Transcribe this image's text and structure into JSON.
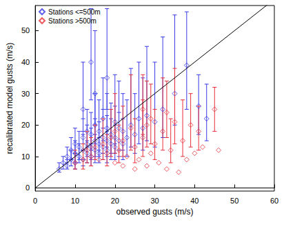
{
  "chart_data": {
    "type": "scatter",
    "x_label": "observed gusts (m/s)",
    "y_label": "recalibrated model gusts (m/s)",
    "xlim": [
      0,
      60
    ],
    "xticks": [
      0,
      10,
      20,
      30,
      40,
      50,
      60
    ],
    "ylim": [
      -1,
      58
    ],
    "yticks": [
      0,
      10,
      20,
      30,
      40,
      50
    ],
    "legend": "top-left",
    "series": [
      {
        "name": "Stations <=500m",
        "color": "#3a3ae8",
        "marker": "diamond",
        "x": [
          6,
          7,
          8,
          8,
          9,
          9,
          10,
          10,
          10,
          11,
          11,
          12,
          12,
          12,
          13,
          13,
          13,
          14,
          14,
          14,
          15,
          15,
          15,
          16,
          16,
          16,
          17,
          17,
          17,
          18,
          18,
          18,
          19,
          19,
          20,
          20,
          20,
          21,
          21,
          22,
          22,
          23,
          24,
          25,
          26,
          27,
          28,
          30,
          32,
          35,
          38,
          41,
          43,
          12,
          15,
          18,
          14
        ],
        "values": [
          6,
          8,
          7,
          10,
          9,
          12,
          8,
          11,
          14,
          10,
          13,
          9,
          12,
          16,
          11,
          14,
          18,
          10,
          13,
          17,
          12,
          15,
          20,
          11,
          14,
          18,
          13,
          16,
          22,
          12,
          15,
          19,
          14,
          17,
          13,
          16,
          21,
          15,
          19,
          14,
          18,
          16,
          20,
          17,
          22,
          19,
          23,
          21,
          25,
          30,
          39,
          26,
          22,
          25,
          30,
          35,
          40
        ],
        "error_low": [
          5,
          6,
          6,
          8,
          7,
          9,
          6,
          8,
          11,
          8,
          9,
          7,
          9,
          12,
          8,
          10,
          13,
          7,
          9,
          12,
          8,
          10,
          14,
          8,
          10,
          12,
          9,
          11,
          15,
          8,
          10,
          13,
          9,
          11,
          9,
          11,
          14,
          10,
          12,
          9,
          12,
          10,
          13,
          11,
          14,
          12,
          15,
          13,
          16,
          20,
          25,
          17,
          15,
          18,
          20,
          25,
          28
        ],
        "error_high": [
          8,
          10,
          9,
          13,
          12,
          16,
          11,
          15,
          19,
          14,
          18,
          12,
          17,
          22,
          15,
          20,
          25,
          14,
          19,
          24,
          17,
          22,
          30,
          16,
          21,
          28,
          19,
          25,
          35,
          18,
          23,
          30,
          22,
          27,
          20,
          26,
          36,
          24,
          34,
          22,
          30,
          28,
          38,
          30,
          40,
          35,
          45,
          40,
          48,
          55,
          56,
          36,
          33,
          40,
          50,
          57,
          57
        ]
      },
      {
        "name": "Stations >500m",
        "color": "#e8303a",
        "marker": "diamond",
        "x": [
          10,
          12,
          13,
          14,
          15,
          16,
          17,
          18,
          19,
          20,
          20,
          21,
          22,
          22,
          23,
          24,
          25,
          25,
          26,
          27,
          28,
          28,
          29,
          30,
          31,
          32,
          33,
          34,
          35,
          36,
          37,
          38,
          39,
          40,
          41,
          42,
          45,
          46,
          33,
          27,
          29
        ],
        "values": [
          8,
          9,
          12,
          10,
          13,
          9,
          14,
          11,
          16,
          8,
          18,
          12,
          7,
          15,
          10,
          19,
          6,
          13,
          9,
          16,
          7,
          20,
          11,
          14,
          8,
          18,
          6,
          12,
          21,
          5,
          15,
          9,
          20,
          11,
          18,
          13,
          25,
          12,
          24,
          25,
          22
        ],
        "error_low": [
          6,
          6,
          8,
          7,
          9,
          null,
          9,
          7,
          10,
          null,
          11,
          8,
          null,
          10,
          null,
          12,
          null,
          8,
          null,
          10,
          null,
          13,
          null,
          9,
          null,
          12,
          null,
          8,
          14,
          null,
          10,
          null,
          13,
          null,
          12,
          null,
          18,
          null,
          16,
          17,
          14
        ],
        "error_high": [
          12,
          14,
          18,
          16,
          20,
          null,
          22,
          17,
          25,
          null,
          30,
          20,
          null,
          26,
          null,
          36,
          null,
          22,
          null,
          28,
          null,
          34,
          null,
          25,
          null,
          35,
          null,
          22,
          38,
          null,
          28,
          null,
          30,
          null,
          26,
          null,
          32,
          null,
          34,
          36,
          33
        ]
      }
    ],
    "lines": [
      {
        "x": [
          0,
          60
        ],
        "values": [
          0,
          60
        ],
        "color": "#000000"
      }
    ]
  }
}
